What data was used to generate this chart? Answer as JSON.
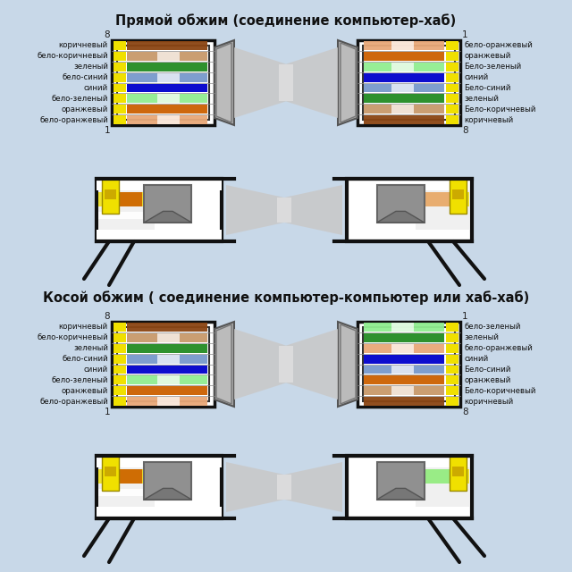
{
  "bg_color": "#c8d8e8",
  "title1": "Прямой обжим (соединение компьютер-хаб)",
  "title2": "Косой обжим ( соединение компьютер-компьютер или хаб-хаб)",
  "title_fontsize": 10.5,
  "label_fontsize": 6.2,
  "straight_left_labels": [
    "коричневый",
    "бело-коричневый",
    "зеленый",
    "бело-синий",
    "синий",
    "бело-зеленый",
    "оранжевый",
    "бело-оранжевый"
  ],
  "straight_right_labels": [
    "бело-оранжевый",
    "оранжевый",
    "Бело-зеленый",
    "синий",
    "Бело-синий",
    "зеленый",
    "Бело-коричневый",
    "коричневый"
  ],
  "cross_left_labels": [
    "коричневый",
    "бело-коричневый",
    "зеленый",
    "бело-синий",
    "синий",
    "бело-зеленый",
    "оранжевый",
    "бело-оранжевый"
  ],
  "cross_right_labels": [
    "бело-зеленый",
    "зеленый",
    "бело-оранжевый",
    "синий",
    "Бело-синий",
    "оранжевый",
    "Бело-коричневый",
    "коричневый"
  ],
  "c_brown": "#8B4513",
  "c_wbrown": "#c8996a",
  "c_green": "#228B22",
  "c_wgreen": "#90ee90",
  "c_blue": "#0000cc",
  "c_wblue": "#7799cc",
  "c_orange": "#cc6000",
  "c_worange": "#e8a878",
  "c_yellow": "#f0e000",
  "c_white": "#ffffff"
}
